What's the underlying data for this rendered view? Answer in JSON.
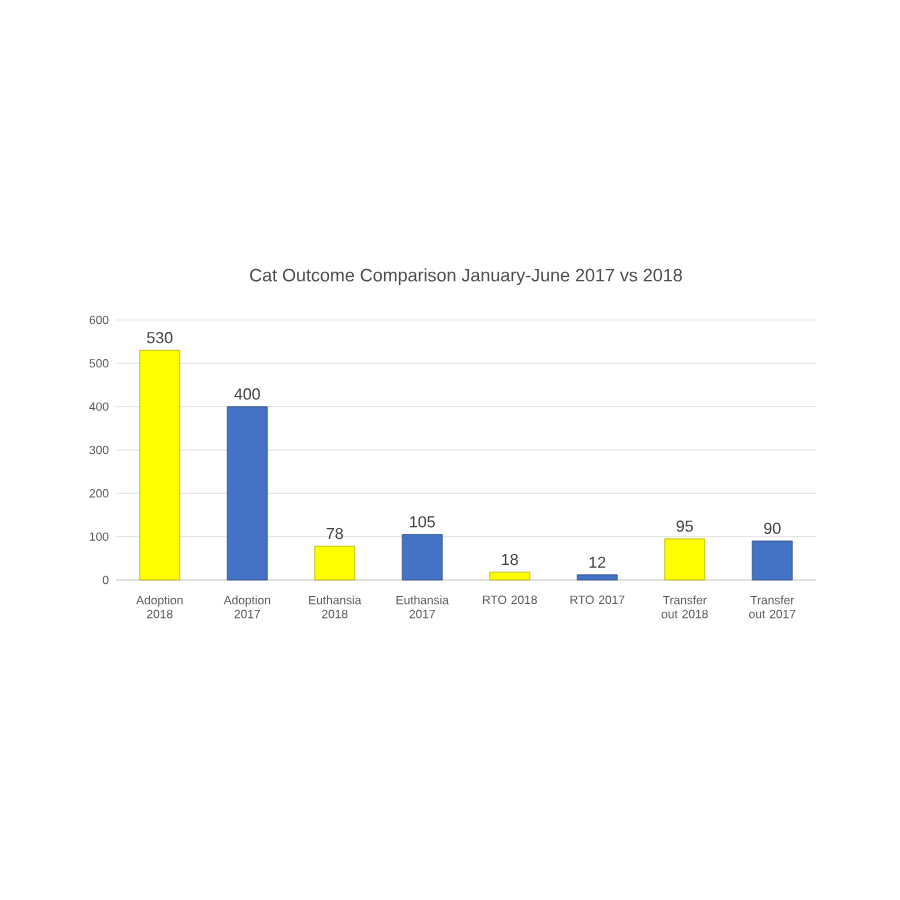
{
  "chart_data": {
    "type": "bar",
    "title": "Cat Outcome Comparison January-June 2017 vs 2018",
    "categories": [
      "Adoption 2018",
      "Adoption 2017",
      "Euthansia 2018",
      "Euthansia 2017",
      "RTO 2018",
      "RTO 2017",
      "Transfer out 2018",
      "Transfer out 2017"
    ],
    "values": [
      530,
      400,
      78,
      105,
      18,
      12,
      95,
      90
    ],
    "colors": [
      "#ffff00",
      "#4472c4",
      "#ffff00",
      "#4472c4",
      "#ffff00",
      "#4472c4",
      "#ffff00",
      "#4472c4"
    ],
    "ylim": [
      0,
      600
    ],
    "yticks": [
      0,
      100,
      200,
      300,
      400,
      500,
      600
    ],
    "grid": "y",
    "data_labels": true
  }
}
